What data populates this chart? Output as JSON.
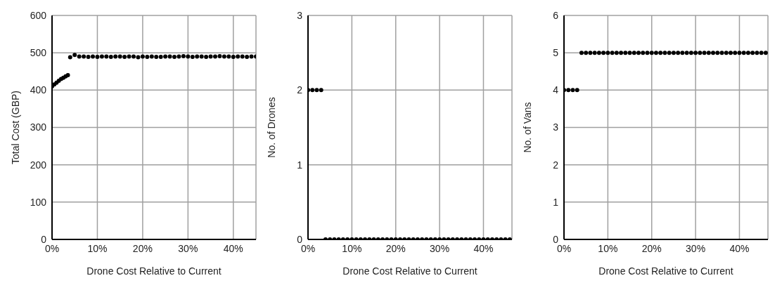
{
  "chart_data": [
    {
      "type": "scatter",
      "xlabel": "Drone Cost Relative to Current",
      "ylabel": "Total Cost (GBP)",
      "xlim": [
        0,
        45
      ],
      "xticks": [
        {
          "value": 0,
          "label": "0%"
        },
        {
          "value": 10,
          "label": "10%"
        },
        {
          "value": 20,
          "label": "20%"
        },
        {
          "value": 30,
          "label": "30%"
        },
        {
          "value": 40,
          "label": "40%"
        }
      ],
      "ylim": [
        0,
        600
      ],
      "yticks": [
        0,
        100,
        200,
        300,
        400,
        500,
        600
      ],
      "grid": true,
      "marker": "circle",
      "x": [
        0,
        0.5,
        1,
        1.5,
        2,
        2.5,
        3,
        3.5,
        4,
        5,
        6,
        7,
        8,
        9,
        10,
        11,
        12,
        13,
        14,
        15,
        16,
        17,
        18,
        19,
        20,
        21,
        22,
        23,
        24,
        25,
        26,
        27,
        28,
        29,
        30,
        31,
        32,
        33,
        34,
        35,
        36,
        37,
        38,
        39,
        40,
        41,
        42,
        43,
        44,
        45
      ],
      "series": [
        {
          "color": "#000000",
          "values": [
            410,
            415,
            420,
            425,
            430,
            433,
            437,
            440,
            488,
            494,
            490,
            490,
            489,
            490,
            489,
            490,
            490,
            489,
            490,
            490,
            489,
            490,
            490,
            488,
            490,
            489,
            490,
            489,
            489,
            490,
            490,
            489,
            490,
            491,
            490,
            489,
            490,
            490,
            489,
            490,
            490,
            491,
            490,
            490,
            489,
            490,
            490,
            489,
            490,
            490
          ]
        }
      ]
    },
    {
      "type": "scatter",
      "xlabel": "Drone Cost Relative to Current",
      "ylabel": "No. of Drones",
      "xlim": [
        0,
        46.5
      ],
      "xticks": [
        {
          "value": 0,
          "label": "0%"
        },
        {
          "value": 10,
          "label": "10%"
        },
        {
          "value": 20,
          "label": "20%"
        },
        {
          "value": 30,
          "label": "30%"
        },
        {
          "value": 40,
          "label": "40%"
        }
      ],
      "ylim": [
        0,
        3
      ],
      "yticks": [
        0,
        1,
        2,
        3
      ],
      "grid": true,
      "marker": "circle",
      "x": [
        0,
        1,
        2,
        3,
        4,
        5,
        6,
        7,
        8,
        9,
        10,
        11,
        12,
        13,
        14,
        15,
        16,
        17,
        18,
        19,
        20,
        21,
        22,
        23,
        24,
        25,
        26,
        27,
        28,
        29,
        30,
        31,
        32,
        33,
        34,
        35,
        36,
        37,
        38,
        39,
        40,
        41,
        42,
        43,
        44,
        45,
        46
      ],
      "series": [
        {
          "color": "#000000",
          "values": [
            2,
            2,
            2,
            2,
            0,
            0,
            0,
            0,
            0,
            0,
            0,
            0,
            0,
            0,
            0,
            0,
            0,
            0,
            0,
            0,
            0,
            0,
            0,
            0,
            0,
            0,
            0,
            0,
            0,
            0,
            0,
            0,
            0,
            0,
            0,
            0,
            0,
            0,
            0,
            0,
            0,
            0,
            0,
            0,
            0,
            0,
            0
          ]
        }
      ]
    },
    {
      "type": "scatter",
      "xlabel": "Drone Cost Relative to Current",
      "ylabel": "No. of Vans",
      "xlim": [
        0,
        46.5
      ],
      "xticks": [
        {
          "value": 0,
          "label": "0%"
        },
        {
          "value": 10,
          "label": "10%"
        },
        {
          "value": 20,
          "label": "20%"
        },
        {
          "value": 30,
          "label": "30%"
        },
        {
          "value": 40,
          "label": "40%"
        }
      ],
      "ylim": [
        0,
        6
      ],
      "yticks": [
        0,
        1,
        2,
        3,
        4,
        5,
        6
      ],
      "grid": true,
      "marker": "circle",
      "x": [
        0,
        1,
        2,
        3,
        4,
        5,
        6,
        7,
        8,
        9,
        10,
        11,
        12,
        13,
        14,
        15,
        16,
        17,
        18,
        19,
        20,
        21,
        22,
        23,
        24,
        25,
        26,
        27,
        28,
        29,
        30,
        31,
        32,
        33,
        34,
        35,
        36,
        37,
        38,
        39,
        40,
        41,
        42,
        43,
        44,
        45,
        46
      ],
      "series": [
        {
          "color": "#000000",
          "values": [
            4,
            4,
            4,
            4,
            5,
            5,
            5,
            5,
            5,
            5,
            5,
            5,
            5,
            5,
            5,
            5,
            5,
            5,
            5,
            5,
            5,
            5,
            5,
            5,
            5,
            5,
            5,
            5,
            5,
            5,
            5,
            5,
            5,
            5,
            5,
            5,
            5,
            5,
            5,
            5,
            5,
            5,
            5,
            5,
            5,
            5,
            5
          ]
        }
      ]
    }
  ]
}
